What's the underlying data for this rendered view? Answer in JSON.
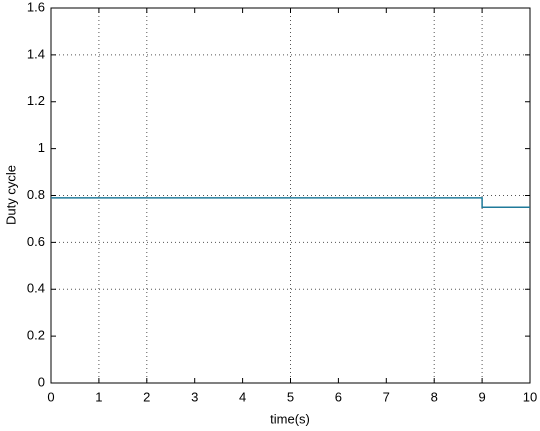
{
  "chart_data": {
    "type": "line",
    "x_label": "time(s)",
    "y_label": "Duty cycle",
    "x": [
      0,
      9,
      9,
      10
    ],
    "series": [
      {
        "color": "#1f7a9a",
        "values": [
          0.79,
          0.79,
          0.75,
          0.75
        ]
      }
    ],
    "xlim": [
      0,
      10
    ],
    "xticks": [
      0,
      1,
      2,
      3,
      4,
      5,
      6,
      7,
      8,
      9,
      10
    ],
    "ylim": [
      0,
      1.6
    ],
    "yticks": [
      0,
      0.2,
      0.4,
      0.6,
      0.8,
      1,
      1.2,
      1.4,
      1.6
    ],
    "xgrid": [
      1,
      2,
      5,
      8,
      9
    ],
    "ygrid": [
      0.4,
      0.6,
      0.8,
      1.4
    ]
  }
}
